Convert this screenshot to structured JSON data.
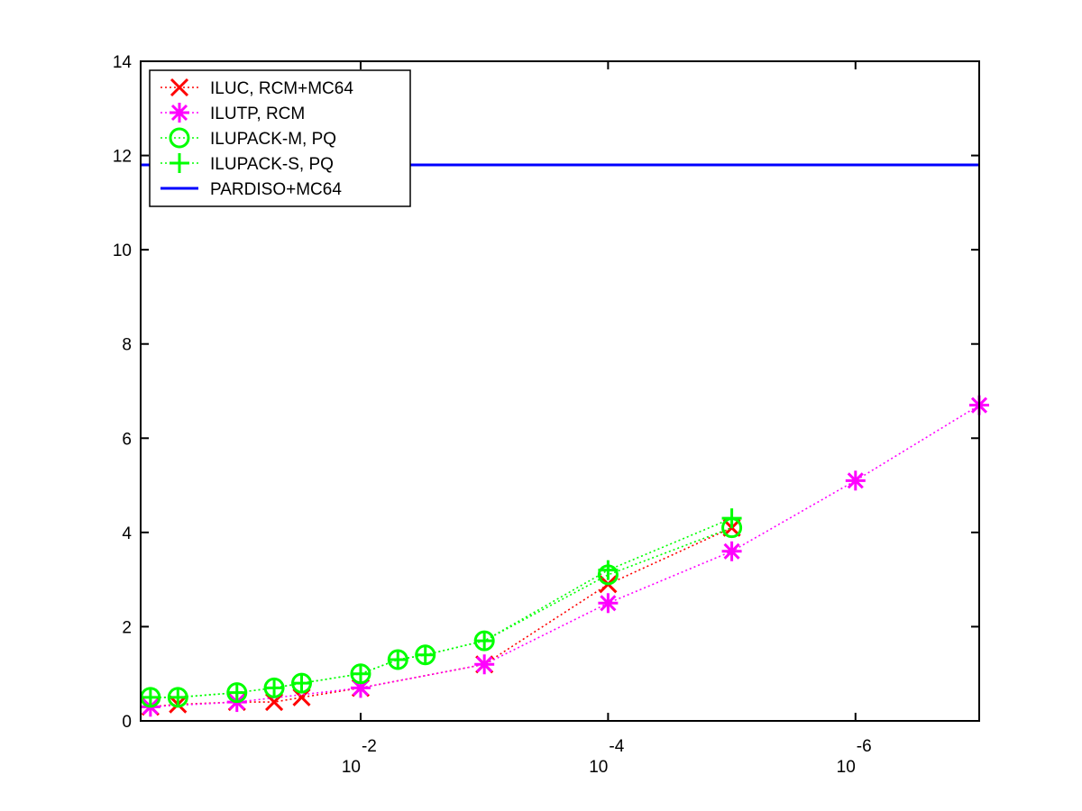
{
  "chart_data": {
    "type": "line",
    "x_scale": "log-reversed",
    "x": [
      0.5,
      0.3,
      0.1,
      0.05,
      0.03,
      0.01,
      0.005,
      0.003,
      0.001,
      0.0001,
      1e-05,
      1e-06,
      1e-07
    ],
    "xlim": [
      0.6,
      1e-07
    ],
    "ylim": [
      0,
      14
    ],
    "x_ticks": [
      {
        "value": 0.01,
        "base": "10",
        "exp": "-2"
      },
      {
        "value": 0.0001,
        "base": "10",
        "exp": "-4"
      },
      {
        "value": 1e-06,
        "base": "10",
        "exp": "-6"
      }
    ],
    "y_ticks": [
      0,
      2,
      4,
      6,
      8,
      10,
      12,
      14
    ],
    "grid": false,
    "legend_position": "top-left",
    "series": [
      {
        "name": "ILUC, RCM+MC64",
        "color": "#ff0000",
        "marker": "x",
        "line_style": "dotted",
        "values": [
          0.3,
          0.35,
          0.4,
          0.4,
          0.5,
          0.7,
          null,
          null,
          1.2,
          2.9,
          4.1,
          null,
          null
        ]
      },
      {
        "name": "ILUTP, RCM",
        "color": "#ff00ff",
        "marker": "asterisk",
        "line_style": "dotted",
        "values": [
          0.3,
          null,
          0.4,
          null,
          null,
          0.7,
          null,
          null,
          1.2,
          2.5,
          3.6,
          5.1,
          6.7
        ]
      },
      {
        "name": "ILUPACK-M, PQ",
        "color": "#00ff00",
        "marker": "circle",
        "line_style": "dotted",
        "values": [
          0.5,
          0.5,
          0.6,
          0.7,
          0.8,
          1.0,
          1.3,
          1.4,
          1.7,
          3.1,
          4.1,
          null,
          null
        ]
      },
      {
        "name": "ILUPACK-S, PQ",
        "color": "#00ff00",
        "marker": "plus",
        "line_style": "dotted",
        "values": [
          0.5,
          0.5,
          0.6,
          0.7,
          0.8,
          1.0,
          1.3,
          1.4,
          1.7,
          3.2,
          4.3,
          null,
          null
        ]
      },
      {
        "name": "PARDISO+MC64",
        "color": "#0000ff",
        "marker": "none",
        "line_style": "solid",
        "constant": 11.8,
        "x_range": [
          0.6,
          1e-07
        ]
      }
    ]
  }
}
